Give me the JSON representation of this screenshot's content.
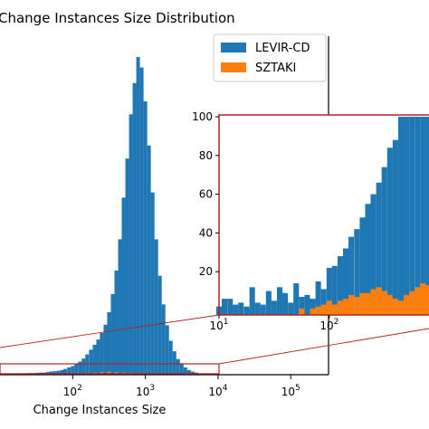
{
  "chart_data": [
    {
      "type": "bar",
      "title": "Change Instances Size Distribution",
      "xlabel": "Change Instances Size",
      "ylabel": "",
      "x_scale": "log",
      "x_tick_labels": [
        {
          "base": "10",
          "exp": "2",
          "value": 100
        },
        {
          "base": "10",
          "exp": "3",
          "value": 1000
        },
        {
          "base": "10",
          "exp": "4",
          "value": 10000
        },
        {
          "base": "10",
          "exp": "5",
          "value": 100000
        }
      ],
      "legend": {
        "placement": "top-right",
        "entries": [
          "LEVIR-CD",
          "SZTAKI"
        ]
      },
      "colors": {
        "LEVIR-CD": "#1f77b4",
        "SZTAKI": "#ff7f0e",
        "zoom_box": "#b22222"
      },
      "series": [
        {
          "name": "LEVIR-CD",
          "bins": [
            [
              20,
              4
            ],
            [
              22,
              5
            ],
            [
              25,
              6
            ],
            [
              28,
              6
            ],
            [
              32,
              7
            ],
            [
              36,
              8
            ],
            [
              40,
              8
            ],
            [
              45,
              10
            ],
            [
              50,
              12
            ],
            [
              56,
              13
            ],
            [
              63,
              15
            ],
            [
              71,
              18
            ],
            [
              79,
              22
            ],
            [
              89,
              28
            ],
            [
              100,
              33
            ],
            [
              112,
              40
            ],
            [
              126,
              50
            ],
            [
              141,
              62
            ],
            [
              158,
              78
            ],
            [
              178,
              96
            ],
            [
              200,
              115
            ],
            [
              224,
              135
            ],
            [
              251,
              160
            ],
            [
              282,
              192
            ],
            [
              316,
              240
            ],
            [
              355,
              310
            ],
            [
              398,
              400
            ],
            [
              447,
              520
            ],
            [
              501,
              680
            ],
            [
              562,
              830
            ],
            [
              631,
              1000
            ],
            [
              708,
              1120
            ],
            [
              794,
              1220
            ],
            [
              891,
              1180
            ],
            [
              1000,
              1050
            ],
            [
              1122,
              880
            ],
            [
              1259,
              700
            ],
            [
              1413,
              520
            ],
            [
              1585,
              380
            ],
            [
              1778,
              270
            ],
            [
              1995,
              190
            ],
            [
              2239,
              130
            ],
            [
              2512,
              90
            ],
            [
              2818,
              60
            ],
            [
              3162,
              42
            ],
            [
              3548,
              28
            ],
            [
              3981,
              18
            ],
            [
              4467,
              12
            ],
            [
              5012,
              8
            ],
            [
              5623,
              5
            ],
            [
              6310,
              3
            ],
            [
              7079,
              2
            ],
            [
              7943,
              1
            ]
          ]
        },
        {
          "name": "SZTAKI",
          "bins": [
            [
              56,
              1
            ],
            [
              63,
              1
            ],
            [
              79,
              2
            ],
            [
              100,
              3
            ],
            [
              126,
              4
            ],
            [
              158,
              6
            ],
            [
              200,
              8
            ],
            [
              251,
              10
            ],
            [
              316,
              12
            ],
            [
              398,
              10
            ],
            [
              501,
              8
            ],
            [
              631,
              7
            ],
            [
              794,
              6
            ],
            [
              1000,
              5
            ],
            [
              1259,
              4
            ],
            [
              1585,
              3
            ],
            [
              1995,
              2
            ],
            [
              2512,
              1
            ]
          ]
        }
      ]
    },
    {
      "type": "bar",
      "title": "",
      "x_scale": "log",
      "x_tick_labels": [
        {
          "base": "10",
          "exp": "1",
          "value": 10
        },
        {
          "base": "10",
          "exp": "2",
          "value": 100
        }
      ],
      "y_tick_labels": [
        "20",
        "40",
        "60",
        "80",
        "100"
      ],
      "ylim": [
        0,
        100
      ],
      "series": [
        {
          "name": "LEVIR-CD",
          "bins": [
            [
              10,
              2
            ],
            [
              11.2,
              6
            ],
            [
              12.6,
              6
            ],
            [
              14.1,
              3
            ],
            [
              15.8,
              4
            ],
            [
              17.8,
              2
            ],
            [
              20,
              12
            ],
            [
              22.4,
              4
            ],
            [
              25.1,
              3
            ],
            [
              28.2,
              10
            ],
            [
              31.6,
              5
            ],
            [
              35.5,
              12
            ],
            [
              39.8,
              9
            ],
            [
              44.7,
              4
            ],
            [
              50.1,
              14
            ],
            [
              56.2,
              7
            ],
            [
              63.1,
              8
            ],
            [
              70.8,
              6
            ],
            [
              79.4,
              15
            ],
            [
              89.1,
              11
            ],
            [
              100,
              22
            ],
            [
              112,
              23
            ],
            [
              126,
              28
            ],
            [
              141,
              32
            ],
            [
              158,
              38
            ],
            [
              178,
              42
            ],
            [
              200,
              48
            ],
            [
              224,
              55
            ],
            [
              251,
              60
            ],
            [
              282,
              66
            ],
            [
              316,
              74
            ],
            [
              355,
              84
            ],
            [
              398,
              88
            ],
            [
              447,
              100
            ],
            [
              501,
              100
            ],
            [
              562,
              100
            ],
            [
              631,
              100
            ],
            [
              708,
              100
            ],
            [
              794,
              100
            ],
            [
              891,
              100
            ]
          ]
        },
        {
          "name": "SZTAKI",
          "bins": [
            [
              56.2,
              1
            ],
            [
              70.8,
              1
            ],
            [
              79.4,
              2
            ],
            [
              89.1,
              3
            ],
            [
              100,
              5
            ],
            [
              112,
              3
            ],
            [
              126,
              5
            ],
            [
              141,
              6
            ],
            [
              158,
              8
            ],
            [
              178,
              7
            ],
            [
              200,
              9
            ],
            [
              224,
              9
            ],
            [
              251,
              11
            ],
            [
              282,
              12
            ],
            [
              316,
              10
            ],
            [
              355,
              8
            ],
            [
              398,
              6
            ],
            [
              447,
              5
            ],
            [
              501,
              8
            ],
            [
              562,
              10
            ],
            [
              631,
              12
            ],
            [
              708,
              14
            ],
            [
              794,
              13
            ],
            [
              891,
              12
            ]
          ]
        }
      ]
    }
  ]
}
